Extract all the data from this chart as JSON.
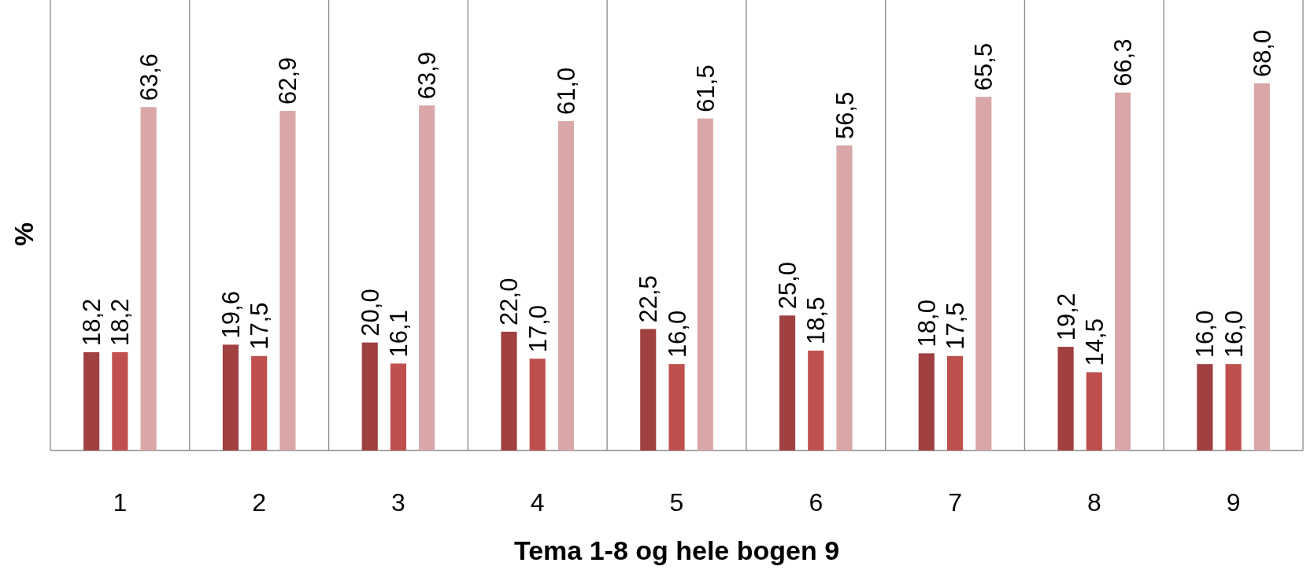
{
  "chart_data": {
    "type": "bar",
    "xlabel": "Tema 1-8 og hele bogen 9",
    "ylabel": "%",
    "categories": [
      "1",
      "2",
      "3",
      "4",
      "5",
      "6",
      "7",
      "8",
      "9"
    ],
    "series": [
      {
        "color": "#a04040",
        "values": [
          18.2,
          19.6,
          20.0,
          22.0,
          22.5,
          25.0,
          18.0,
          19.2,
          16.0
        ],
        "value_labels": [
          "18,2",
          "19,6",
          "20,0",
          "22,0",
          "22,5",
          "25,0",
          "18,0",
          "19,2",
          "16,0"
        ]
      },
      {
        "color": "#c0504d",
        "values": [
          18.2,
          17.5,
          16.1,
          17.0,
          16.0,
          18.5,
          17.5,
          14.5,
          16.0
        ],
        "value_labels": [
          "18,2",
          "17,5",
          "16,1",
          "17,0",
          "16,0",
          "18,5",
          "17,5",
          "14,5",
          "16,0"
        ]
      },
      {
        "color": "#d9a7a7",
        "values": [
          63.6,
          62.9,
          63.9,
          61.0,
          61.5,
          56.5,
          65.5,
          66.3,
          68.0
        ],
        "value_labels": [
          "63,6",
          "62,9",
          "63,9",
          "61,0",
          "61,5",
          "56,5",
          "65,5",
          "66,3",
          "68,0"
        ]
      }
    ],
    "grid": "x"
  }
}
